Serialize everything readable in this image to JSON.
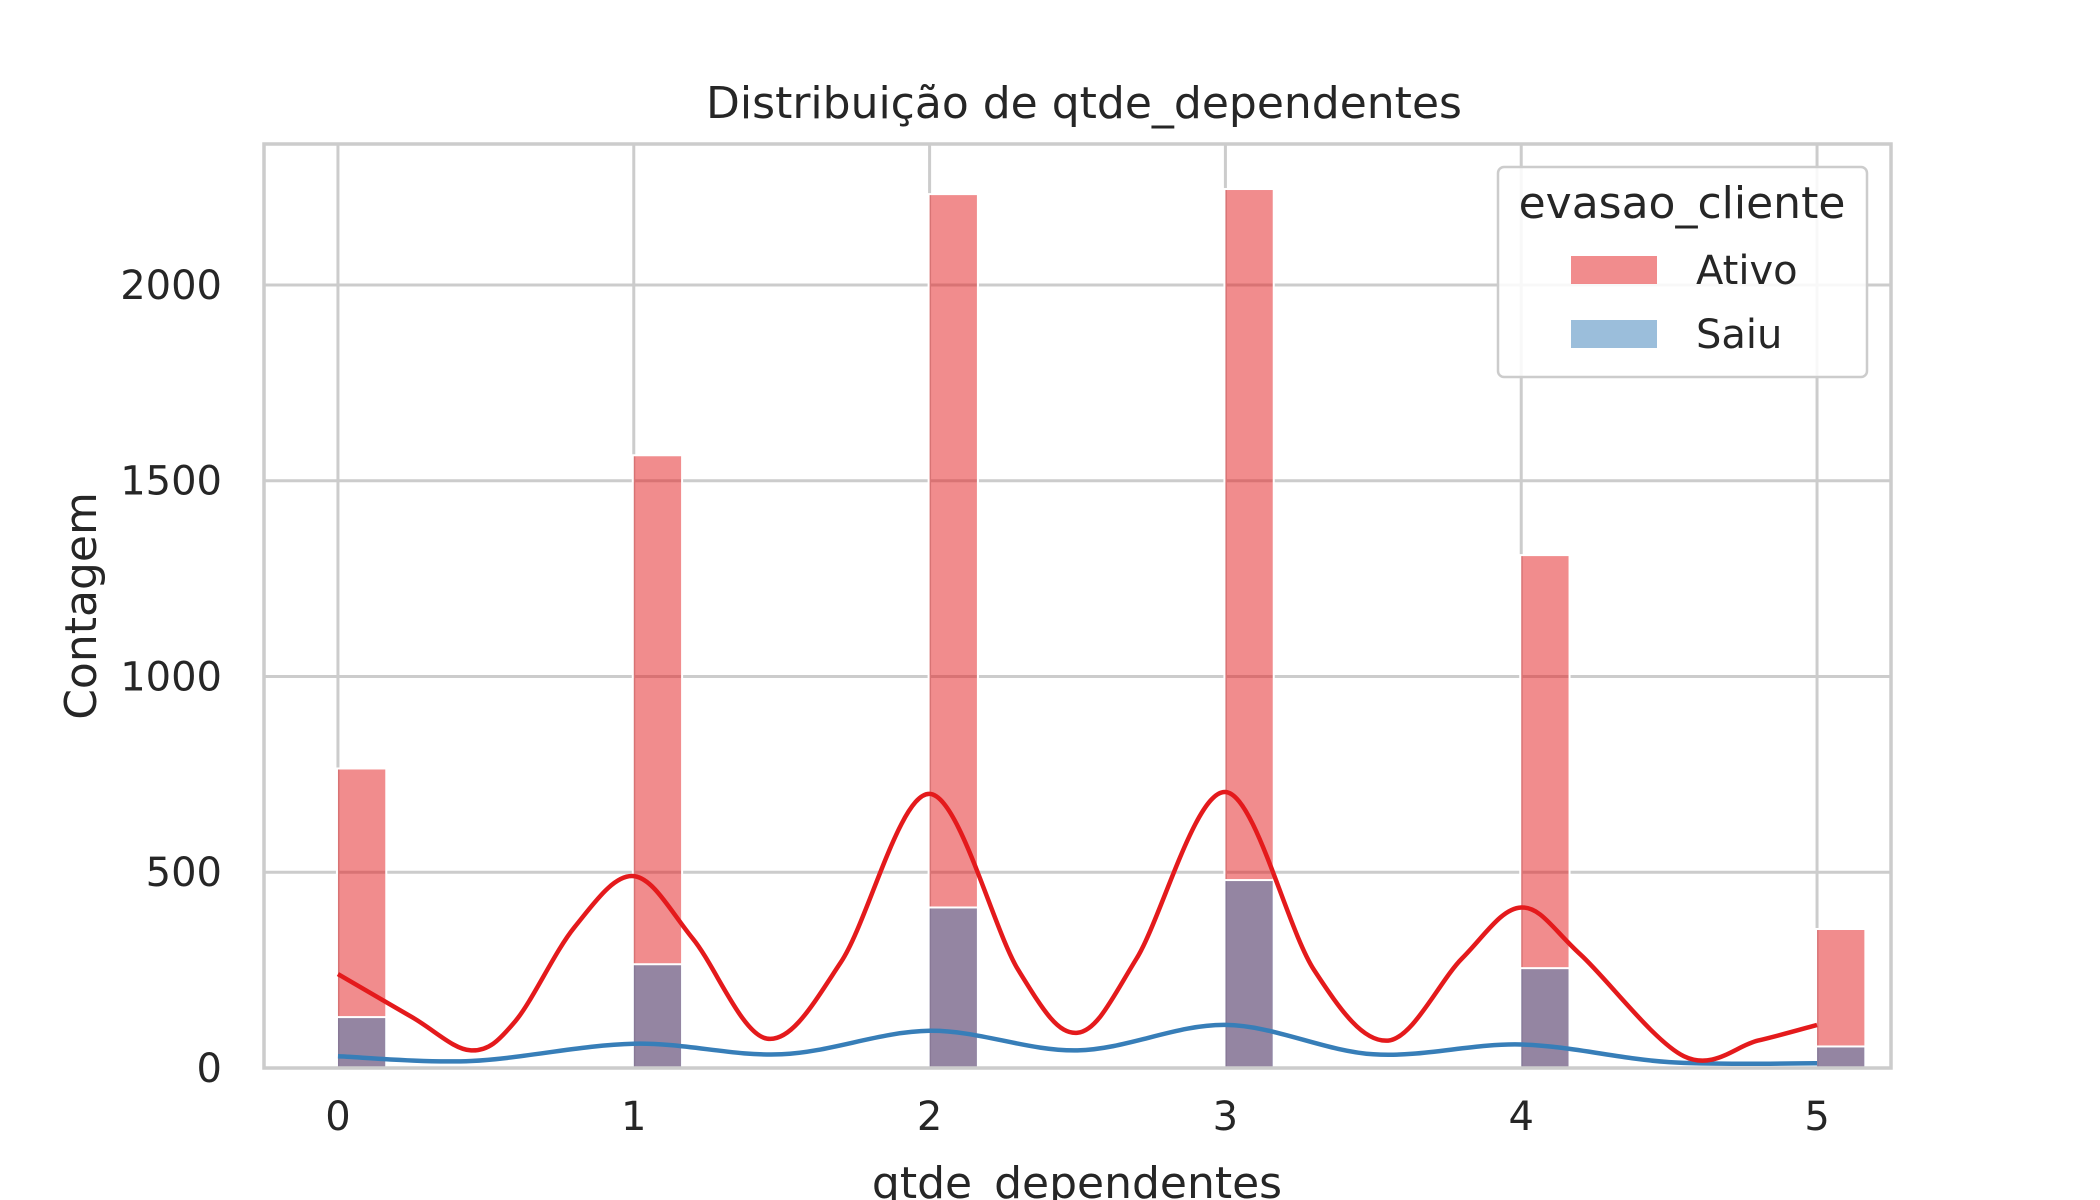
{
  "chart_data": {
    "type": "histogram",
    "title": "Distribuição de qtde_dependentes",
    "xlabel": "qtde_dependentes",
    "ylabel": "Contagem",
    "xlim": [
      -0.25,
      5.25
    ],
    "ylim": [
      0,
      2360
    ],
    "x_ticks": [
      "0",
      "1",
      "2",
      "3",
      "4",
      "5"
    ],
    "y_ticks": [
      "0",
      "500",
      "1000",
      "1500",
      "2000"
    ],
    "grid": true,
    "legend": {
      "title": "evasao_cliente",
      "position": "top-right"
    },
    "bin_width": 0.1667,
    "x": [
      0,
      1,
      2,
      3,
      4,
      5
    ],
    "series": [
      {
        "name": "Ativo",
        "color": "#e41a1c",
        "values": [
          765,
          1565,
          2232,
          2245,
          1310,
          355
        ],
        "kde_x": [
          0,
          0.25,
          0.45,
          0.6,
          0.8,
          1.0,
          1.2,
          1.45,
          1.7,
          2.0,
          2.3,
          2.5,
          2.7,
          3.0,
          3.3,
          3.55,
          3.8,
          4.0,
          4.2,
          4.55,
          4.8,
          5.0
        ],
        "kde_y": [
          240,
          130,
          45,
          120,
          360,
          490,
          330,
          75,
          270,
          700,
          250,
          90,
          280,
          705,
          250,
          70,
          280,
          410,
          290,
          30,
          70,
          110
        ]
      },
      {
        "name": "Saiu",
        "color": "#377eb8",
        "values": [
          130,
          265,
          410,
          480,
          255,
          55
        ],
        "kde_x": [
          0,
          0.45,
          1.0,
          1.5,
          2.0,
          2.5,
          3.0,
          3.5,
          4.0,
          4.5,
          5.0
        ],
        "kde_y": [
          30,
          18,
          62,
          35,
          95,
          45,
          110,
          35,
          60,
          15,
          12
        ]
      }
    ]
  }
}
